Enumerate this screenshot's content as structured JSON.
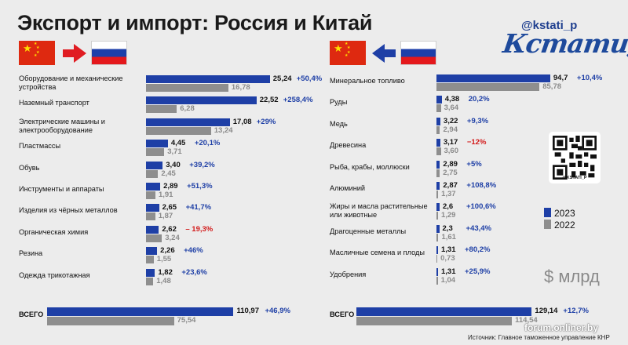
{
  "header": {
    "title": "Экспорт и импорт: Россия и Китай",
    "handle": "@kstati_p",
    "logo_text": "Кстати,"
  },
  "legend": {
    "y2023": "2023",
    "y2022": "2022"
  },
  "unit_label": "$ млрд",
  "qr_caption": "@KSTATI_P",
  "site": "forum.onliner.by",
  "source": "Источник: Главное таможенное управление КНР",
  "colors": {
    "y2023": "#1e3fa6",
    "y2022": "#8e8e8e",
    "positive": "#1e3fa6",
    "negative": "#d31b1b"
  },
  "chart_data": [
    {
      "type": "bar",
      "direction": "China → Russia",
      "categories": [
        "Оборудование и механические устройства",
        "Наземный транспорт",
        "Электрические машины и электрооборудование",
        "Пластмассы",
        "Обувь",
        "Инструменты и аппараты",
        "Изделия из чёрных металлов",
        "Органическая химия",
        "Резина",
        "Одежда трикотажная"
      ],
      "series": [
        {
          "name": "2023",
          "values": [
            25.24,
            22.52,
            17.08,
            4.45,
            3.4,
            2.89,
            2.65,
            2.62,
            2.26,
            1.82
          ],
          "labels": [
            "25,24",
            "22,52",
            "17,08",
            "4,45",
            "3,40",
            "2,89",
            "2,65",
            "2,62",
            "2,26",
            "1,82"
          ]
        },
        {
          "name": "2022",
          "values": [
            16.78,
            6.28,
            13.24,
            3.71,
            2.45,
            1.91,
            1.87,
            3.24,
            1.55,
            1.48
          ],
          "labels": [
            "16,78",
            "6,28",
            "13,24",
            "3,71",
            "2,45",
            "1,91",
            "1,87",
            "3,24",
            "1,55",
            "1,48"
          ]
        }
      ],
      "changes": [
        "+50,4%",
        "+258,4%",
        "+29%",
        "+20,1%",
        "+39,2%",
        "+51,3%",
        "+41,7%",
        "– 19,3%",
        "+46%",
        "+23,6%"
      ],
      "total": {
        "label": "ВСЕГО",
        "v2023": 110.97,
        "v2022": 75.54,
        "l2023": "110,97",
        "l2022": "75,54",
        "change": "+46,9%"
      }
    },
    {
      "type": "bar",
      "direction": "Russia → China",
      "categories": [
        "Минеральное топливо",
        "Руды",
        "Медь",
        "Древесина",
        "Рыба, крабы, моллюски",
        "Алюминий",
        "Жиры и масла растительные или животные",
        "Драгоценные металлы",
        "Масличные семена и плоды",
        "Удобрения"
      ],
      "series": [
        {
          "name": "2023",
          "values": [
            94.7,
            4.38,
            3.22,
            3.17,
            2.89,
            2.87,
            2.6,
            2.3,
            1.31,
            1.31
          ],
          "labels": [
            "94,7",
            "4,38",
            "3,22",
            "3,17",
            "2,89",
            "2,87",
            "2,6",
            "2,3",
            "1,31",
            "1,31"
          ]
        },
        {
          "name": "2022",
          "values": [
            85.78,
            3.64,
            2.94,
            3.6,
            2.75,
            1.37,
            1.29,
            1.61,
            0.73,
            1.04
          ],
          "labels": [
            "85,78",
            "3,64",
            "2,94",
            "3,60",
            "2,75",
            "1,37",
            "1,29",
            "1,61",
            "0,73",
            "1,04"
          ]
        }
      ],
      "changes": [
        "+10,4%",
        "20,2%",
        "+9,3%",
        "−12%",
        "+5%",
        "+108,8%",
        "+100,6%",
        "+43,4%",
        "+80,2%",
        "+25,9%"
      ],
      "total": {
        "label": "ВСЕГО",
        "v2023": 129.14,
        "v2022": 114.54,
        "l2023": "129,14",
        "l2022": "114,54",
        "change": "+12,7%"
      }
    }
  ]
}
